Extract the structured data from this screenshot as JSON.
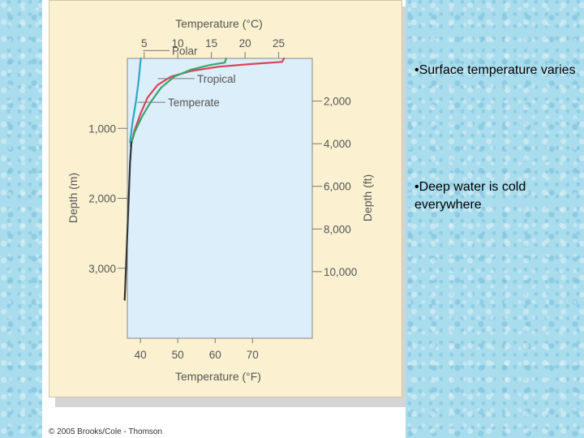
{
  "slide": {
    "bullets": [
      "•Surface temperature varies",
      "•Deep water is cold everywhere"
    ],
    "copyright": "© 2005 Brooks/Cole - Thomson"
  },
  "chart_data": {
    "type": "line",
    "title": "",
    "x_top": {
      "label": "Temperature (°C)",
      "ticks": [
        5,
        10,
        15,
        20,
        25
      ],
      "tick_labels": [
        "5",
        "10",
        "15",
        "20",
        "25"
      ]
    },
    "x_bottom": {
      "label": "Temperature (°F)",
      "ticks": [
        40,
        50,
        60,
        70
      ],
      "tick_labels": [
        "40",
        "50",
        "60",
        "70"
      ]
    },
    "y_left": {
      "label": "Depth (m)",
      "ticks": [
        1000,
        2000,
        3000
      ],
      "tick_labels": [
        "1,000",
        "2,000",
        "3,000"
      ],
      "range": [
        0,
        4000
      ],
      "inverted": true
    },
    "y_right": {
      "label": "Depth (ft)",
      "ticks": [
        2000,
        4000,
        6000,
        8000,
        10000
      ],
      "tick_labels": [
        "2,000",
        "4,000",
        "6,000",
        "8,000",
        "10,000"
      ]
    },
    "x_range_c": [
      2.5,
      30
    ],
    "series": [
      {
        "name": "Polar",
        "color": "#2ea8c4",
        "points": [
          [
            4.5,
            0
          ],
          [
            4.2,
            300
          ],
          [
            3.8,
            600
          ],
          [
            3.3,
            900
          ],
          [
            2.9,
            1200
          ]
        ]
      },
      {
        "name": "Tropical",
        "color": "#d94457",
        "points": [
          [
            25.8,
            0
          ],
          [
            25.5,
            50
          ],
          [
            21,
            80
          ],
          [
            16,
            120
          ],
          [
            12,
            180
          ],
          [
            9,
            260
          ],
          [
            7,
            380
          ],
          [
            5.5,
            560
          ],
          [
            4.5,
            780
          ],
          [
            3.5,
            1050
          ],
          [
            3.0,
            1250
          ]
        ]
      },
      {
        "name": "Temperate",
        "color": "#3aa36b",
        "points": [
          [
            17.2,
            0
          ],
          [
            17.0,
            60
          ],
          [
            15,
            90
          ],
          [
            12,
            160
          ],
          [
            9.5,
            260
          ],
          [
            7.5,
            420
          ],
          [
            6,
            620
          ],
          [
            4.7,
            830
          ],
          [
            3.6,
            1050
          ],
          [
            3.0,
            1250
          ]
        ]
      },
      {
        "name": "",
        "color": "#333333",
        "points": [
          [
            3.1,
            1200
          ],
          [
            2.9,
            1500
          ],
          [
            2.7,
            2000
          ],
          [
            2.5,
            2500
          ],
          [
            2.3,
            3000
          ],
          [
            2.1,
            3450
          ]
        ]
      }
    ],
    "grid": false,
    "legend": "inline labels"
  }
}
